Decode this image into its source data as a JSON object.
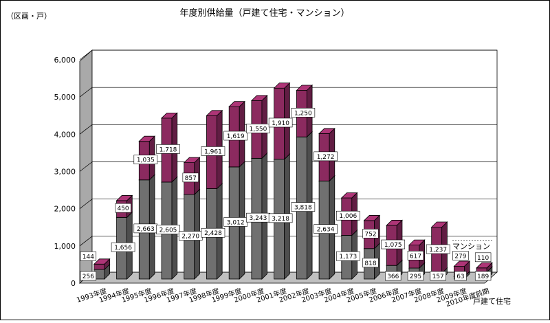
{
  "chart_data": {
    "type": "bar",
    "stacked": true,
    "three_d": true,
    "title": "年度別供給量（戸建て住宅・マンション）",
    "unit_label": "（区画・戸）",
    "ylim": [
      0,
      6000
    ],
    "yticks": [
      "0",
      "1,000",
      "2,000",
      "3,000",
      "4,000",
      "5,000",
      "6,000"
    ],
    "grid": true,
    "categories": [
      "1993年度",
      "1994年度",
      "1995年度",
      "1996年度",
      "1997年度",
      "1998年度",
      "1999年度",
      "2000年度",
      "2001年度",
      "2002年度",
      "2003年度",
      "2004年度",
      "2005年度",
      "2006年度",
      "2007年度",
      "2008年度",
      "2009年度",
      "2010年度前期"
    ],
    "series": [
      {
        "name": "戸建て住宅",
        "color": "#707070",
        "values": [
          256,
          1656,
          2663,
          2605,
          2270,
          2428,
          3012,
          3243,
          3218,
          3818,
          2634,
          1173,
          818,
          366,
          295,
          157,
          63,
          189
        ],
        "labels": [
          "256",
          "1,656",
          "2,663",
          "2,605",
          "2,270",
          "2,428",
          "3,012",
          "3,243",
          "3,218",
          "3,818",
          "2,634",
          "1,173",
          "818",
          "366",
          "295",
          "157",
          "63",
          "189"
        ]
      },
      {
        "name": "マンション",
        "color": "#8b2a5f",
        "values": [
          144,
          450,
          1035,
          1718,
          857,
          1961,
          1619,
          1550,
          1910,
          1250,
          1272,
          1006,
          752,
          1075,
          617,
          1237,
          279,
          110
        ],
        "labels": [
          "144",
          "450",
          "1,035",
          "1,718",
          "857",
          "1,961",
          "1,619",
          "1,550",
          "1,910",
          "1,250",
          "1,272",
          "1,006",
          "752",
          "1,075",
          "617",
          "1,237",
          "279",
          "110"
        ]
      }
    ],
    "legend_placement": "right, at end of series"
  }
}
